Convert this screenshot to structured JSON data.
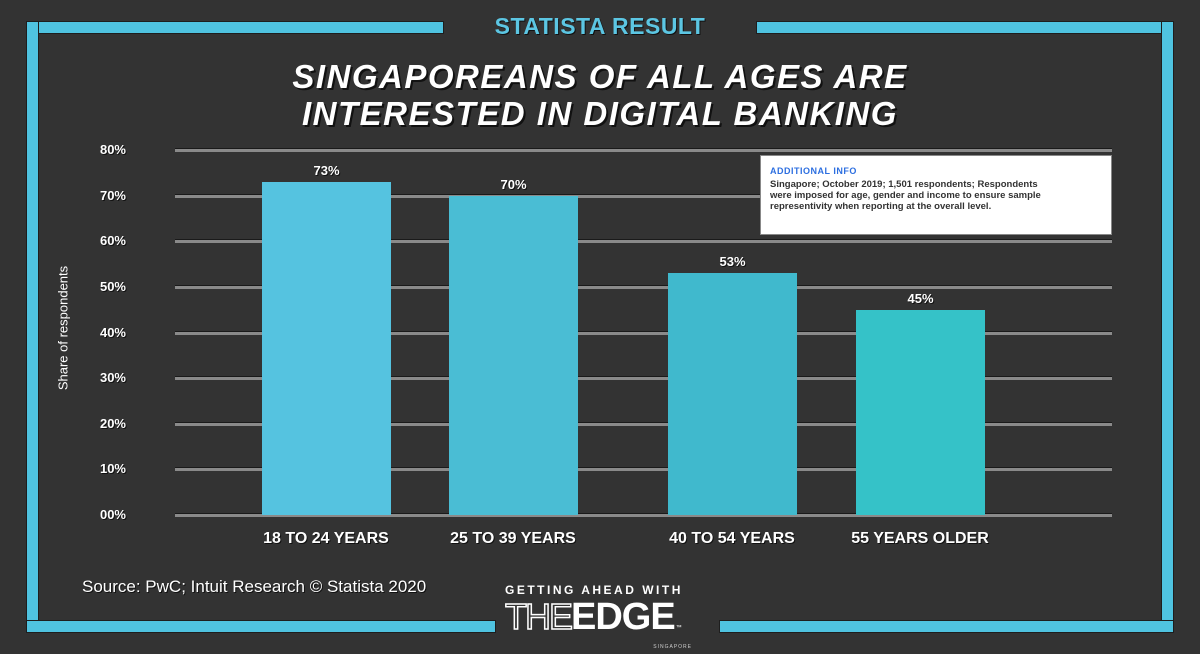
{
  "header": {
    "banner": "STATISTA RESULT",
    "headline_line1": "SINGAPOREANS OF ALL AGES ARE",
    "headline_line2": "INTERESTED IN DIGITAL BANKING"
  },
  "colors": {
    "frame": "#4fc3e0",
    "background": "#333333",
    "bars": [
      "#55c3e0",
      "#4abdd4",
      "#40b9cd",
      "#35c2c8"
    ],
    "info_title": "#2d6fe0"
  },
  "info_box": {
    "title": "ADDITIONAL INFO",
    "line1": "Singapore; October 2019; 1,501 respondents; Respondents",
    "line2": "were imposed for age, gender and income to ensure sample",
    "line3": "representivity when reporting at the overall level."
  },
  "footer": {
    "source": "Source: PwC; Intuit Research © Statista 2020",
    "logo_tagline": "GETTING AHEAD WITH",
    "logo_the": "THE",
    "logo_edge": "EDGE",
    "logo_tm": "™",
    "logo_sub": "SINGAPORE"
  },
  "chart_data": {
    "type": "bar",
    "title": "SINGAPOREANS OF ALL AGES ARE INTERESTED IN DIGITAL BANKING",
    "subtitle": "STATISTA RESULT",
    "categories": [
      "18 TO 24 YEARS",
      "25 TO 39 YEARS",
      "40 TO 54 YEARS",
      "55 YEARS OLDER"
    ],
    "values": [
      73,
      70,
      53,
      45
    ],
    "value_labels": [
      "73%",
      "70%",
      "53%",
      "45%"
    ],
    "xlabel": "",
    "ylabel": "Share of respondents",
    "ylim": [
      0,
      80
    ],
    "yticks": [
      "00%",
      "10%",
      "20%",
      "30%",
      "40%",
      "50%",
      "60%",
      "70%",
      "80%"
    ],
    "grid": true,
    "legend": null,
    "annotations": [
      "ADDITIONAL INFO: Singapore; October 2019; 1,501 respondents; Respondents were imposed for age, gender and income to ensure sample representivity when reporting at the overall level."
    ],
    "source": "Source: PwC; Intuit Research © Statista 2020"
  }
}
